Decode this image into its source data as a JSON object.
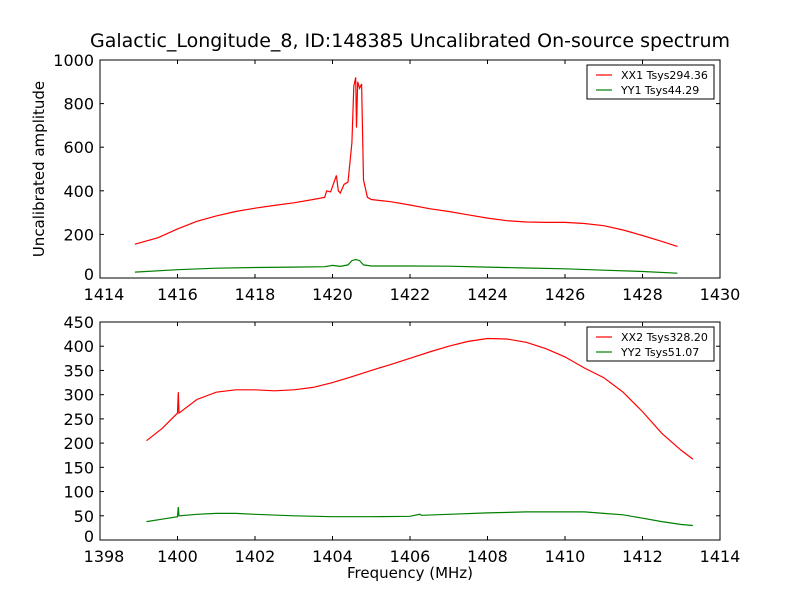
{
  "chart_data": [
    {
      "type": "line",
      "title": "Galactic_Longitude_8, ID:148385 Uncalibrated On-source spectrum",
      "xlabel": "",
      "ylabel": "Uncalibrated amplitude",
      "xlim": [
        1414,
        1430
      ],
      "ylim": [
        0,
        1000
      ],
      "xticks": [
        1414,
        1416,
        1418,
        1420,
        1422,
        1424,
        1426,
        1428,
        1430
      ],
      "yticks": [
        0,
        200,
        400,
        600,
        800,
        1000
      ],
      "legend_position": "top-right",
      "grid": false,
      "series": [
        {
          "name": "XX1 Tsys294.36",
          "color": "#ff0000",
          "points": [
            [
              1414.9,
              155
            ],
            [
              1415.5,
              185
            ],
            [
              1416,
              225
            ],
            [
              1416.5,
              260
            ],
            [
              1417,
              285
            ],
            [
              1417.5,
              305
            ],
            [
              1418,
              320
            ],
            [
              1418.5,
              333
            ],
            [
              1419,
              345
            ],
            [
              1419.5,
              360
            ],
            [
              1419.8,
              370
            ],
            [
              1419.85,
              400
            ],
            [
              1419.95,
              395
            ],
            [
              1420.1,
              470
            ],
            [
              1420.15,
              400
            ],
            [
              1420.2,
              390
            ],
            [
              1420.3,
              430
            ],
            [
              1420.4,
              440
            ],
            [
              1420.5,
              620
            ],
            [
              1420.55,
              880
            ],
            [
              1420.6,
              920
            ],
            [
              1420.62,
              690
            ],
            [
              1420.65,
              900
            ],
            [
              1420.7,
              870
            ],
            [
              1420.75,
              890
            ],
            [
              1420.8,
              450
            ],
            [
              1420.9,
              370
            ],
            [
              1421,
              360
            ],
            [
              1421.5,
              350
            ],
            [
              1422,
              335
            ],
            [
              1422.5,
              318
            ],
            [
              1423,
              305
            ],
            [
              1423.5,
              290
            ],
            [
              1424,
              275
            ],
            [
              1424.5,
              263
            ],
            [
              1425,
              257
            ],
            [
              1425.5,
              255
            ],
            [
              1426,
              255
            ],
            [
              1426.5,
              250
            ],
            [
              1427,
              240
            ],
            [
              1427.5,
              220
            ],
            [
              1428,
              195
            ],
            [
              1428.5,
              168
            ],
            [
              1428.9,
              145
            ]
          ]
        },
        {
          "name": "YY1 Tsys44.29",
          "color": "#008000",
          "points": [
            [
              1414.9,
              27
            ],
            [
              1416,
              38
            ],
            [
              1417,
              45
            ],
            [
              1418,
              48
            ],
            [
              1419,
              50
            ],
            [
              1419.8,
              52
            ],
            [
              1420,
              58
            ],
            [
              1420.2,
              53
            ],
            [
              1420.4,
              60
            ],
            [
              1420.5,
              80
            ],
            [
              1420.6,
              85
            ],
            [
              1420.7,
              80
            ],
            [
              1420.8,
              60
            ],
            [
              1421,
              55
            ],
            [
              1422,
              55
            ],
            [
              1423,
              54
            ],
            [
              1424,
              50
            ],
            [
              1425,
              46
            ],
            [
              1426,
              42
            ],
            [
              1427,
              36
            ],
            [
              1428,
              30
            ],
            [
              1428.9,
              22
            ]
          ]
        }
      ]
    },
    {
      "type": "line",
      "title": "",
      "xlabel": "Frequency (MHz)",
      "ylabel": "",
      "xlim": [
        1398,
        1414
      ],
      "ylim": [
        0,
        450
      ],
      "xticks": [
        1398,
        1400,
        1402,
        1404,
        1406,
        1408,
        1410,
        1412,
        1414
      ],
      "yticks": [
        0,
        50,
        100,
        150,
        200,
        250,
        300,
        350,
        400,
        450
      ],
      "legend_position": "top-right",
      "grid": false,
      "series": [
        {
          "name": "XX2 Tsys328.20",
          "color": "#ff0000",
          "points": [
            [
              1399.2,
              205
            ],
            [
              1399.6,
              230
            ],
            [
              1400,
              262
            ],
            [
              1400.02,
              305
            ],
            [
              1400.04,
              262
            ],
            [
              1400.5,
              290
            ],
            [
              1401,
              305
            ],
            [
              1401.5,
              310
            ],
            [
              1402,
              310
            ],
            [
              1402.5,
              308
            ],
            [
              1403,
              310
            ],
            [
              1403.5,
              315
            ],
            [
              1404,
              325
            ],
            [
              1404.5,
              337
            ],
            [
              1405,
              350
            ],
            [
              1405.5,
              362
            ],
            [
              1406,
              375
            ],
            [
              1406.5,
              388
            ],
            [
              1407,
              400
            ],
            [
              1407.5,
              410
            ],
            [
              1408,
              416
            ],
            [
              1408.5,
              415
            ],
            [
              1409,
              408
            ],
            [
              1409.5,
              395
            ],
            [
              1410,
              378
            ],
            [
              1410.5,
              355
            ],
            [
              1411,
              335
            ],
            [
              1411.5,
              305
            ],
            [
              1412,
              265
            ],
            [
              1412.5,
              220
            ],
            [
              1413,
              185
            ],
            [
              1413.3,
              167
            ]
          ]
        },
        {
          "name": "YY2 Tsys51.07",
          "color": "#008000",
          "points": [
            [
              1399.2,
              38
            ],
            [
              1399.6,
              43
            ],
            [
              1400,
              48
            ],
            [
              1400.02,
              68
            ],
            [
              1400.04,
              50
            ],
            [
              1400.5,
              53
            ],
            [
              1401,
              55
            ],
            [
              1401.5,
              55
            ],
            [
              1402,
              53
            ],
            [
              1403,
              50
            ],
            [
              1404,
              48
            ],
            [
              1405,
              48
            ],
            [
              1406,
              49
            ],
            [
              1406.25,
              53
            ],
            [
              1406.3,
              51
            ],
            [
              1407,
              53
            ],
            [
              1408,
              56
            ],
            [
              1409,
              58
            ],
            [
              1410,
              58
            ],
            [
              1410.5,
              58
            ],
            [
              1411,
              55
            ],
            [
              1411.5,
              52
            ],
            [
              1412,
              45
            ],
            [
              1412.5,
              38
            ],
            [
              1413,
              32
            ],
            [
              1413.3,
              30
            ]
          ]
        }
      ]
    }
  ]
}
